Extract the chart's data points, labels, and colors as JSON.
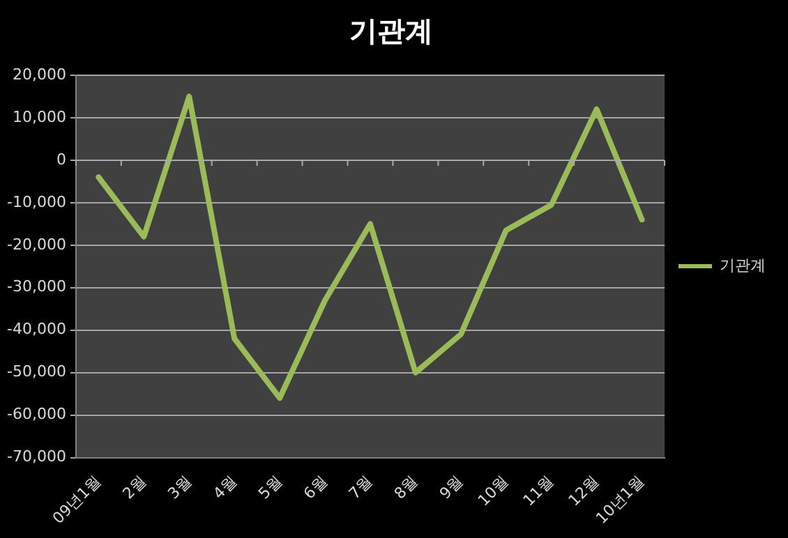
{
  "chart_data": {
    "type": "line",
    "title": "기관계",
    "categories": [
      "09년1월",
      "2월",
      "3월",
      "4월",
      "5월",
      "6월",
      "7월",
      "8월",
      "9월",
      "10월",
      "11월",
      "12월",
      "10년1월"
    ],
    "series": [
      {
        "name": "기관계",
        "color": "#9bbb59",
        "values": [
          -4000,
          -18000,
          15000,
          -42000,
          -56000,
          -33000,
          -15000,
          -50000,
          -41000,
          -16500,
          -10500,
          12000,
          -14000
        ]
      }
    ],
    "ylim": [
      -70000,
      20000
    ],
    "yticks": [
      {
        "value": 20000,
        "label": "20,000"
      },
      {
        "value": 10000,
        "label": "10,000"
      },
      0,
      {
        "value": -10000,
        "label": "-10,000"
      },
      {
        "value": -20000,
        "label": "-20,000"
      },
      {
        "value": -30000,
        "label": "-30,000"
      },
      {
        "value": -40000,
        "label": "-40,000"
      },
      {
        "value": -50000,
        "label": "-50,000"
      },
      {
        "value": -60000,
        "label": "-60,000"
      },
      {
        "value": -70000,
        "label": "-70,000"
      }
    ],
    "grid": "y",
    "legend": "right",
    "marker": "none",
    "line_style": "solid"
  }
}
